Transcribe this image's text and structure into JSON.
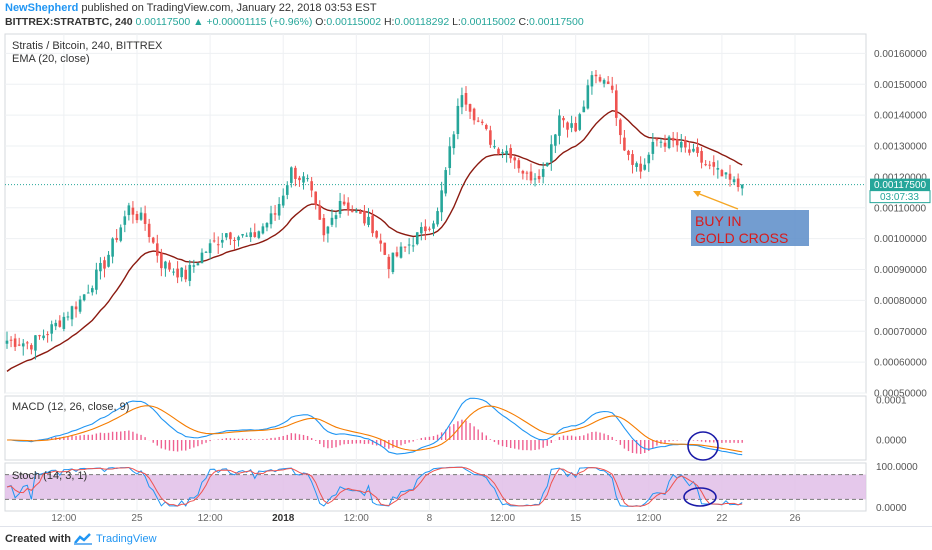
{
  "header": {
    "author": "NewShepherd",
    "published": "published on TradingView.com, January 22, 2018 03:53 EST",
    "symbol": "BITTREX:STRATBTC, 240",
    "last": "0.00117500",
    "change": "+0.00001115 (+0.96%)",
    "open_label": "O:",
    "open": "0.00115002",
    "high_label": "H:",
    "high": "0.00118292",
    "low_label": "L:",
    "low": "0.00115002",
    "close_label": "C:",
    "close": "0.00117500"
  },
  "footer": {
    "created": "Created with",
    "brand": "TradingView"
  },
  "colors": {
    "up": "#26a69a",
    "down": "#ef5350",
    "ema": "#8b1a10",
    "macd": "#2196f3",
    "signal": "#f57c00",
    "hist": "#e91e63",
    "stoch_k": "#2196f3",
    "stoch_d": "#ef5350",
    "stoch_band": "#e1bee7",
    "annotation_fill": "#5b8cc8",
    "annotation_text": "#d81b1b",
    "arrow": "#f5a623",
    "circle": "#1a1aa8",
    "price_tag": "#26a69a"
  },
  "chart_data": {
    "type": "candlestick",
    "title": "Stratis / Bitcoin, 240, BITTREX",
    "indicator": "EMA (20, close)",
    "ylim": [
      0.0005,
      0.00165
    ],
    "y_ticks": [
      "0.00160000",
      "0.00150000",
      "0.00140000",
      "0.00130000",
      "0.00120000",
      "0.00110000",
      "0.00100000",
      "0.00090000",
      "0.00080000",
      "0.00070000",
      "0.00060000",
      "0.00050000"
    ],
    "y_tick_values": [
      0.0016,
      0.0015,
      0.0014,
      0.0013,
      0.0012,
      0.0011,
      0.001,
      0.0009,
      0.0008,
      0.0007,
      0.0006,
      0.0005
    ],
    "x_ticks": [
      "12:00",
      "25",
      "12:00",
      "2018",
      "12:00",
      "8",
      "12:00",
      "15",
      "12:00",
      "22",
      "26"
    ],
    "x_tick_index": [
      14,
      32,
      50,
      68,
      86,
      104,
      122,
      140,
      158,
      176,
      194
    ],
    "last_price_label": "0.00117500",
    "countdown_label": "03:07:33",
    "last_price": 0.001175,
    "keypoints": [
      [
        0,
        0.00067
      ],
      [
        6,
        0.00066
      ],
      [
        12,
        0.00072
      ],
      [
        18,
        0.0008
      ],
      [
        24,
        0.00092
      ],
      [
        30,
        0.0011
      ],
      [
        34,
        0.00105
      ],
      [
        38,
        0.00092
      ],
      [
        44,
        0.00088
      ],
      [
        48,
        0.00095
      ],
      [
        54,
        0.00102
      ],
      [
        60,
        0.001
      ],
      [
        66,
        0.00108
      ],
      [
        70,
        0.00122
      ],
      [
        74,
        0.00118
      ],
      [
        78,
        0.001
      ],
      [
        82,
        0.00113
      ],
      [
        86,
        0.00108
      ],
      [
        90,
        0.00104
      ],
      [
        94,
        0.00092
      ],
      [
        98,
        0.00097
      ],
      [
        102,
        0.00102
      ],
      [
        106,
        0.00108
      ],
      [
        110,
        0.00135
      ],
      [
        112,
        0.00148
      ],
      [
        116,
        0.00138
      ],
      [
        120,
        0.0013
      ],
      [
        124,
        0.00128
      ],
      [
        128,
        0.0012
      ],
      [
        132,
        0.00122
      ],
      [
        136,
        0.0014
      ],
      [
        140,
        0.00135
      ],
      [
        144,
        0.00152
      ],
      [
        148,
        0.00152
      ],
      [
        152,
        0.0013
      ],
      [
        156,
        0.00122
      ],
      [
        160,
        0.00132
      ],
      [
        164,
        0.00131
      ],
      [
        168,
        0.00128
      ],
      [
        172,
        0.00124
      ],
      [
        176,
        0.0012
      ],
      [
        180,
        0.00117
      ]
    ],
    "macd_panel": {
      "title": "MACD (12, 26, close, 9)",
      "y_ticks": [
        "0.0001",
        "0.0000"
      ],
      "y_tick_values": [
        0.0001,
        0.0
      ],
      "ylim": [
        -5e-05,
        0.00011
      ]
    },
    "stoch_panel": {
      "title": "Stoch (14, 3, 1)",
      "y_ticks": [
        "100.0000",
        "0.0000"
      ],
      "y_tick_values": [
        100,
        0
      ],
      "band": [
        20,
        80
      ],
      "ylim": [
        -8,
        108
      ]
    },
    "annotation": {
      "line1": "BUY IN",
      "line2": "GOLD CROSS"
    }
  }
}
